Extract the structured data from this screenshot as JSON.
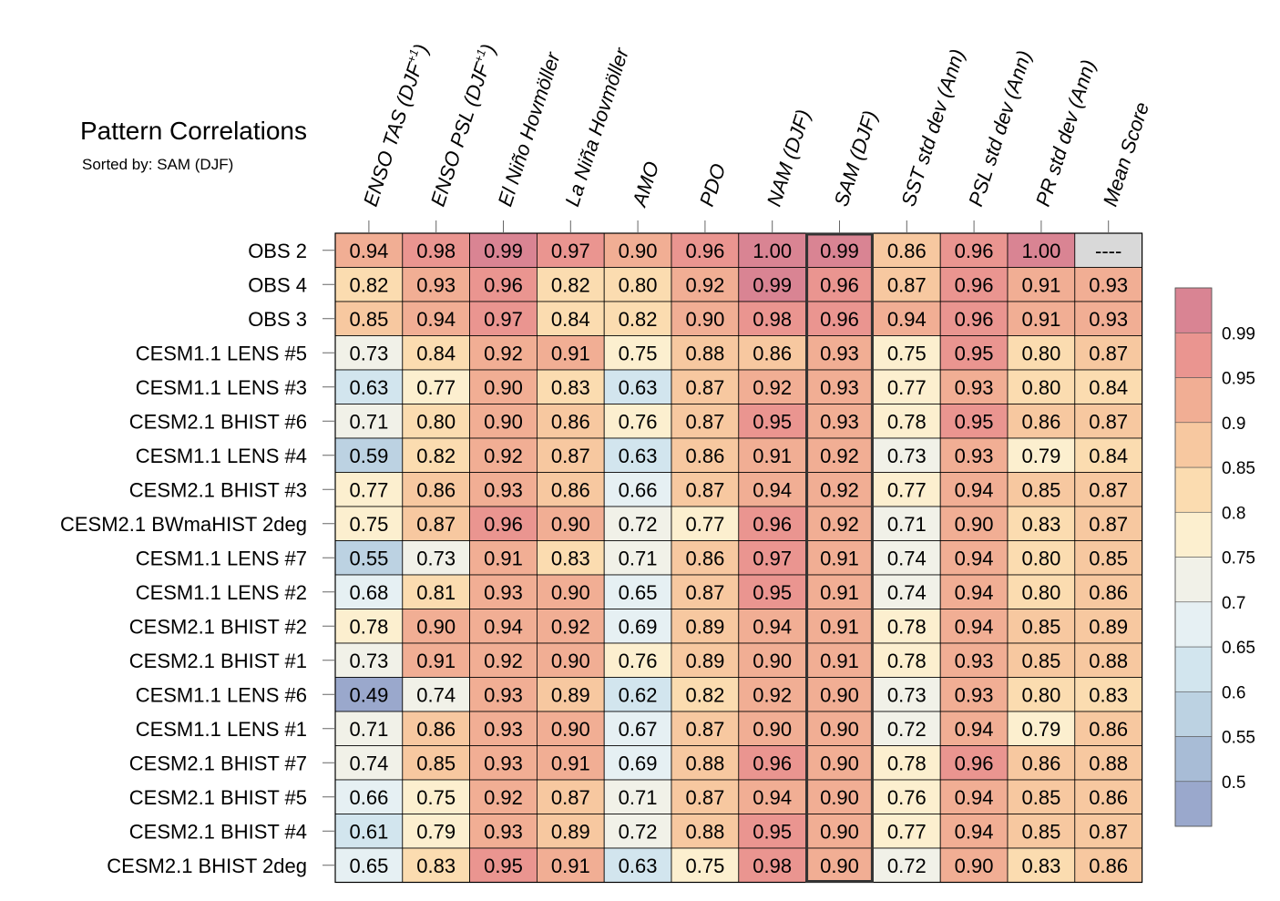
{
  "chart_data": {
    "type": "heatmap",
    "title": "Pattern Correlations",
    "subtitle": "Sorted by: SAM (DJF)",
    "highlight_column": "SAM (DJF)",
    "columns": [
      {
        "main": "ENSO TAS (DJF",
        "sup": "+1",
        "close": ")"
      },
      {
        "main": "ENSO PSL (DJF",
        "sup": "+1",
        "close": ")"
      },
      {
        "main": "El Niño Hovmöller"
      },
      {
        "main": "La Niña Hovmöller"
      },
      {
        "main": "AMO"
      },
      {
        "main": "PDO"
      },
      {
        "main": "NAM (DJF)"
      },
      {
        "main": "SAM (DJF)"
      },
      {
        "main": "SST std dev (Ann)"
      },
      {
        "main": "PSL std dev (Ann)"
      },
      {
        "main": "PR std dev (Ann)"
      },
      {
        "main": "Mean Score"
      }
    ],
    "rows": [
      {
        "label": "OBS 2",
        "values": [
          "0.94",
          "0.98",
          "0.99",
          "0.97",
          "0.90",
          "0.96",
          "1.00",
          "0.99",
          "0.86",
          "0.96",
          "1.00",
          "----"
        ]
      },
      {
        "label": "OBS 4",
        "values": [
          "0.82",
          "0.93",
          "0.96",
          "0.82",
          "0.80",
          "0.92",
          "0.99",
          "0.96",
          "0.87",
          "0.96",
          "0.91",
          "0.93"
        ]
      },
      {
        "label": "OBS 3",
        "values": [
          "0.85",
          "0.94",
          "0.97",
          "0.84",
          "0.82",
          "0.90",
          "0.98",
          "0.96",
          "0.94",
          "0.96",
          "0.91",
          "0.93"
        ]
      },
      {
        "label": "CESM1.1 LENS #5",
        "values": [
          "0.73",
          "0.84",
          "0.92",
          "0.91",
          "0.75",
          "0.88",
          "0.86",
          "0.93",
          "0.75",
          "0.95",
          "0.80",
          "0.87"
        ]
      },
      {
        "label": "CESM1.1 LENS #3",
        "values": [
          "0.63",
          "0.77",
          "0.90",
          "0.83",
          "0.63",
          "0.87",
          "0.92",
          "0.93",
          "0.77",
          "0.93",
          "0.80",
          "0.84"
        ]
      },
      {
        "label": "CESM2.1 BHIST #6",
        "values": [
          "0.71",
          "0.80",
          "0.90",
          "0.86",
          "0.76",
          "0.87",
          "0.95",
          "0.93",
          "0.78",
          "0.95",
          "0.86",
          "0.87"
        ]
      },
      {
        "label": "CESM1.1 LENS #4",
        "values": [
          "0.59",
          "0.82",
          "0.92",
          "0.87",
          "0.63",
          "0.86",
          "0.91",
          "0.92",
          "0.73",
          "0.93",
          "0.79",
          "0.84"
        ]
      },
      {
        "label": "CESM2.1 BHIST #3",
        "values": [
          "0.77",
          "0.86",
          "0.93",
          "0.86",
          "0.66",
          "0.87",
          "0.94",
          "0.92",
          "0.77",
          "0.94",
          "0.85",
          "0.87"
        ]
      },
      {
        "label": "CESM2.1 BWmaHIST 2deg",
        "values": [
          "0.75",
          "0.87",
          "0.96",
          "0.90",
          "0.72",
          "0.77",
          "0.96",
          "0.92",
          "0.71",
          "0.90",
          "0.83",
          "0.87"
        ]
      },
      {
        "label": "CESM1.1 LENS #7",
        "values": [
          "0.55",
          "0.73",
          "0.91",
          "0.83",
          "0.71",
          "0.86",
          "0.97",
          "0.91",
          "0.74",
          "0.94",
          "0.80",
          "0.85"
        ]
      },
      {
        "label": "CESM1.1 LENS #2",
        "values": [
          "0.68",
          "0.81",
          "0.93",
          "0.90",
          "0.65",
          "0.87",
          "0.95",
          "0.91",
          "0.74",
          "0.94",
          "0.80",
          "0.86"
        ]
      },
      {
        "label": "CESM2.1 BHIST #2",
        "values": [
          "0.78",
          "0.90",
          "0.94",
          "0.92",
          "0.69",
          "0.89",
          "0.94",
          "0.91",
          "0.78",
          "0.94",
          "0.85",
          "0.89"
        ]
      },
      {
        "label": "CESM2.1 BHIST #1",
        "values": [
          "0.73",
          "0.91",
          "0.92",
          "0.90",
          "0.76",
          "0.89",
          "0.90",
          "0.91",
          "0.78",
          "0.93",
          "0.85",
          "0.88"
        ]
      },
      {
        "label": "CESM1.1 LENS #6",
        "values": [
          "0.49",
          "0.74",
          "0.93",
          "0.89",
          "0.62",
          "0.82",
          "0.92",
          "0.90",
          "0.73",
          "0.93",
          "0.80",
          "0.83"
        ]
      },
      {
        "label": "CESM1.1 LENS #1",
        "values": [
          "0.71",
          "0.86",
          "0.93",
          "0.90",
          "0.67",
          "0.87",
          "0.90",
          "0.90",
          "0.72",
          "0.94",
          "0.79",
          "0.86"
        ]
      },
      {
        "label": "CESM2.1 BHIST #7",
        "values": [
          "0.74",
          "0.85",
          "0.93",
          "0.91",
          "0.69",
          "0.88",
          "0.96",
          "0.90",
          "0.78",
          "0.96",
          "0.86",
          "0.88"
        ]
      },
      {
        "label": "CESM2.1 BHIST #5",
        "values": [
          "0.66",
          "0.75",
          "0.92",
          "0.87",
          "0.71",
          "0.87",
          "0.94",
          "0.90",
          "0.76",
          "0.94",
          "0.85",
          "0.86"
        ]
      },
      {
        "label": "CESM2.1 BHIST #4",
        "values": [
          "0.61",
          "0.79",
          "0.93",
          "0.89",
          "0.72",
          "0.88",
          "0.95",
          "0.90",
          "0.77",
          "0.94",
          "0.85",
          "0.87"
        ]
      },
      {
        "label": "CESM2.1 BHIST 2deg",
        "values": [
          "0.65",
          "0.83",
          "0.95",
          "0.91",
          "0.63",
          "0.75",
          "0.98",
          "0.90",
          "0.72",
          "0.90",
          "0.83",
          "0.86"
        ]
      }
    ],
    "missing_value": "----",
    "missing_color": "#d9d9d9",
    "colorbar": {
      "levels": [
        0.5,
        0.55,
        0.6,
        0.65,
        0.7,
        0.75,
        0.8,
        0.85,
        0.9,
        0.95,
        0.99
      ],
      "tick_labels": [
        "0.5",
        "0.55",
        "0.6",
        "0.65",
        "0.7",
        "0.75",
        "0.8",
        "0.85",
        "0.9",
        "0.95",
        "0.99"
      ],
      "colors": [
        "#9aa8cc",
        "#a8bcd6",
        "#bcd2e2",
        "#d2e5ee",
        "#e6f0f3",
        "#f1f1e8",
        "#fcefcf",
        "#fbdcb0",
        "#f7c8a0",
        "#f1ae94",
        "#ea9590",
        "#d98493"
      ]
    }
  }
}
